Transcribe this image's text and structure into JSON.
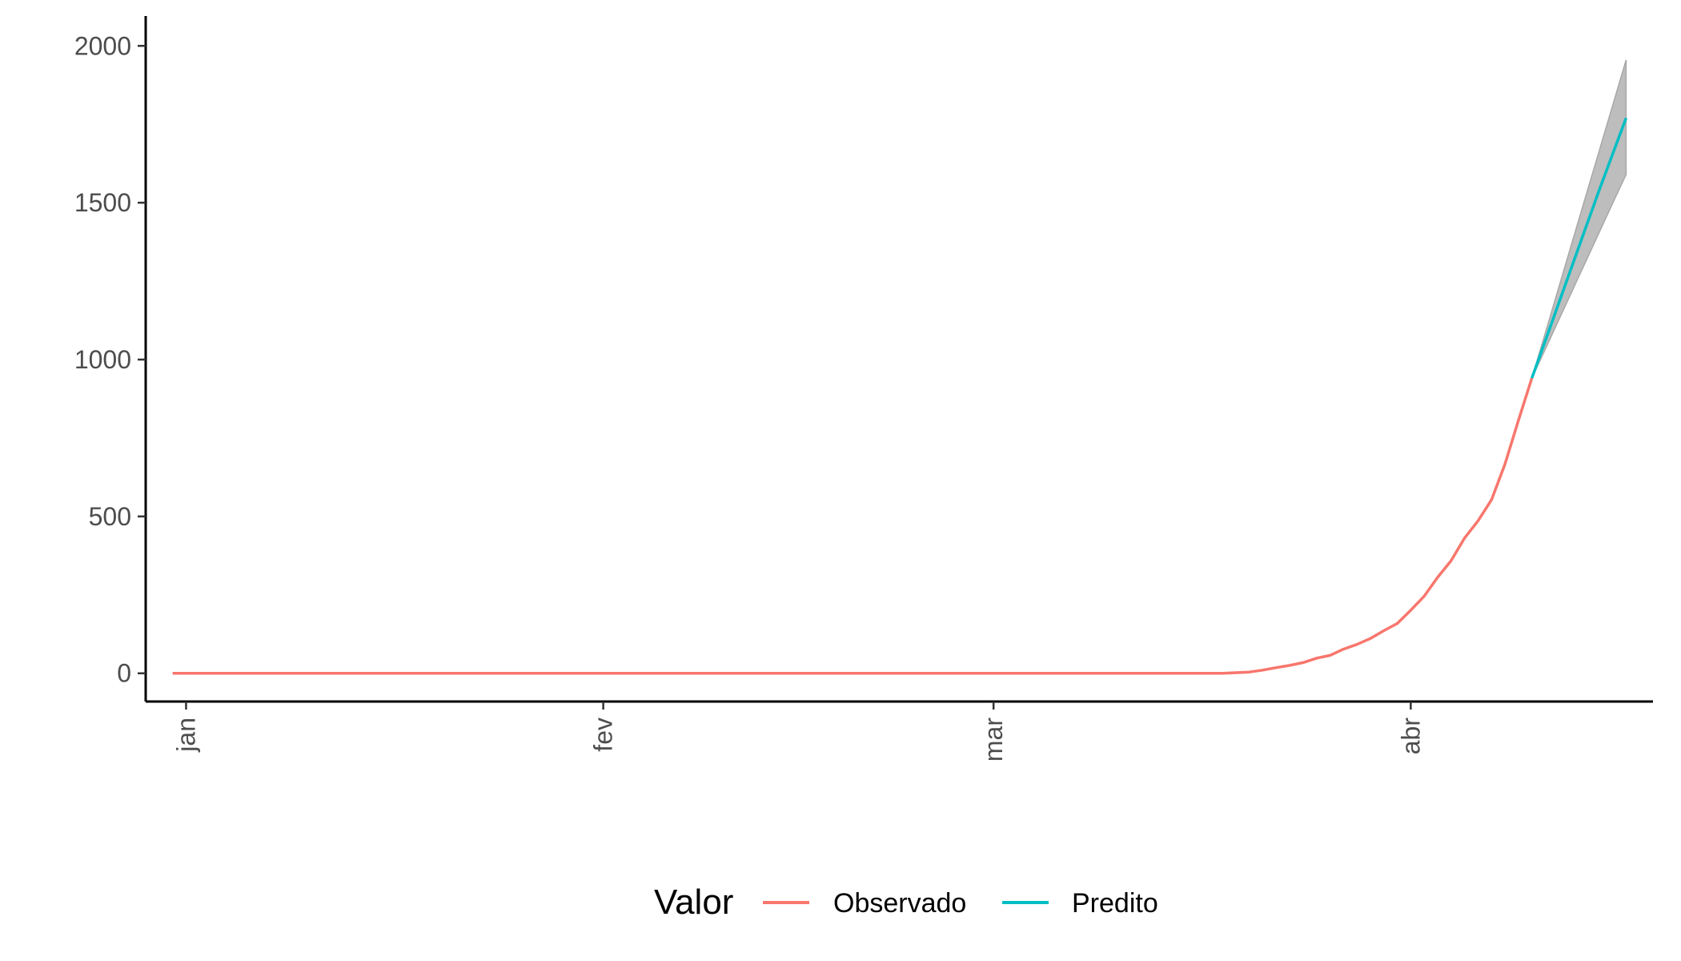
{
  "chart_data": {
    "type": "line",
    "title": "",
    "xlabel": "",
    "ylabel": "",
    "ylim": [
      -90,
      2090
    ],
    "xlim": [
      -3,
      109
    ],
    "y_ticks": [
      0,
      500,
      1000,
      1500,
      2000
    ],
    "y_tick_labels": [
      "0",
      "500",
      "1000",
      "1500",
      "2000"
    ],
    "x_ticks": [
      {
        "label": "jan",
        "value": 0
      },
      {
        "label": "fev",
        "value": 31
      },
      {
        "label": "mar",
        "value": 60
      },
      {
        "label": "abr",
        "value": 91
      }
    ],
    "grid": false,
    "legend": {
      "title": "Valor",
      "position": "bottom",
      "entries": [
        {
          "label": "Observado",
          "color": "#F8766D"
        },
        {
          "label": "Predito",
          "color": "#00BFC4"
        }
      ]
    },
    "series": [
      {
        "name": "Observado",
        "color": "#F8766D",
        "points": [
          [
            -1,
            0
          ],
          [
            77,
            0
          ],
          [
            78,
            2
          ],
          [
            79,
            4
          ],
          [
            80,
            10
          ],
          [
            81,
            18
          ],
          [
            82,
            25
          ],
          [
            83,
            34
          ],
          [
            84,
            48
          ],
          [
            85,
            57
          ],
          [
            86,
            77
          ],
          [
            87,
            92
          ],
          [
            88,
            111
          ],
          [
            89,
            136
          ],
          [
            90,
            159
          ],
          [
            91,
            201
          ],
          [
            92,
            246
          ],
          [
            93,
            306
          ],
          [
            94,
            359
          ],
          [
            95,
            431
          ],
          [
            96,
            486
          ],
          [
            97,
            553
          ],
          [
            98,
            667
          ],
          [
            99,
            806
          ],
          [
            100,
            941
          ]
        ]
      },
      {
        "name": "Predito",
        "color": "#00BFC4",
        "points": [
          [
            100,
            941
          ],
          [
            101,
            1060
          ],
          [
            102,
            1180
          ],
          [
            103,
            1300
          ],
          [
            104,
            1420
          ],
          [
            105,
            1540
          ],
          [
            106,
            1655
          ],
          [
            107,
            1770
          ]
        ],
        "ribbon": {
          "color": "#bdbdbd",
          "lower": [
            [
              100,
              941
            ],
            [
              101,
              1033
            ],
            [
              102,
              1126
            ],
            [
              103,
              1219
            ],
            [
              104,
              1312
            ],
            [
              105,
              1405
            ],
            [
              106,
              1498
            ],
            [
              107,
              1590
            ]
          ],
          "upper": [
            [
              100,
              941
            ],
            [
              101,
              1085
            ],
            [
              102,
              1230
            ],
            [
              103,
              1375
            ],
            [
              104,
              1520
            ],
            [
              105,
              1665
            ],
            [
              106,
              1810
            ],
            [
              107,
              1955
            ]
          ]
        }
      }
    ]
  }
}
